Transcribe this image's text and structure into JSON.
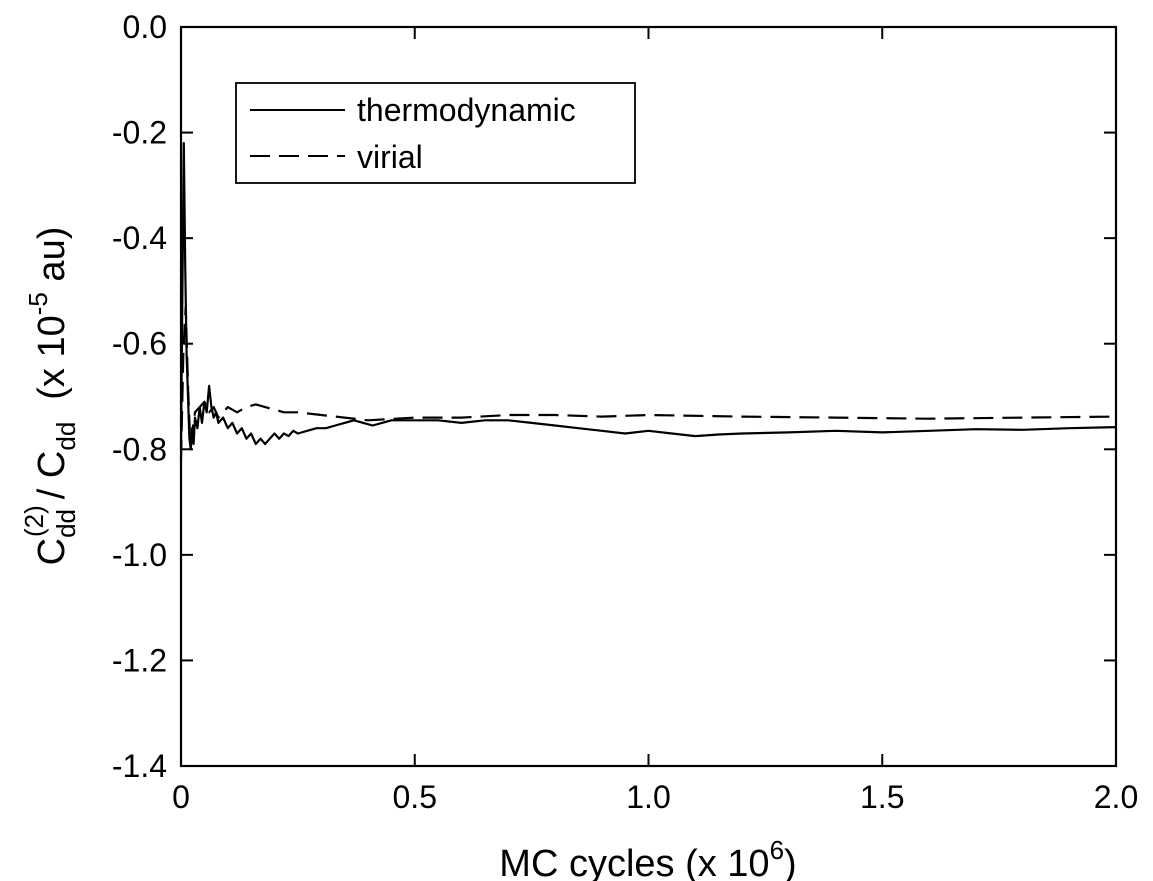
{
  "chart_data": {
    "type": "line",
    "title": "",
    "xlabel": {
      "main": "MC cycles (x 10",
      "sup": "6",
      "end": ")"
    },
    "ylabel": {
      "base1": "C",
      "sub1": "dd",
      "sup1": "(2)",
      "slash": "/ C",
      "sub2": "dd",
      "units_open": "(x 10",
      "units_sup": "-5",
      "units_close": " au)"
    },
    "xlim": [
      0,
      2.0
    ],
    "ylim": [
      -1.4,
      0.0
    ],
    "xticks": [
      0,
      0.5,
      1.0,
      1.5,
      2.0
    ],
    "xtick_labels": [
      "0",
      "0.5",
      "1.0",
      "1.5",
      "2.0"
    ],
    "yticks": [
      0.0,
      -0.2,
      -0.4,
      -0.6,
      -0.8,
      -1.0,
      -1.2,
      -1.4
    ],
    "ytick_labels": [
      "0.0",
      "-0.2",
      "-0.4",
      "-0.6",
      "-0.8",
      "-1.0",
      "-1.2",
      "-1.4"
    ],
    "grid": false,
    "legend_position": "top-left",
    "series": [
      {
        "name": "thermodynamic",
        "style": "solid",
        "color": "#000000",
        "x": [
          0.0,
          0.003,
          0.006,
          0.009,
          0.012,
          0.015,
          0.018,
          0.021,
          0.024,
          0.027,
          0.03,
          0.035,
          0.04,
          0.045,
          0.05,
          0.055,
          0.06,
          0.065,
          0.07,
          0.075,
          0.08,
          0.09,
          0.1,
          0.11,
          0.12,
          0.13,
          0.14,
          0.15,
          0.16,
          0.17,
          0.18,
          0.19,
          0.2,
          0.21,
          0.22,
          0.23,
          0.24,
          0.25,
          0.27,
          0.29,
          0.31,
          0.33,
          0.35,
          0.37,
          0.39,
          0.41,
          0.43,
          0.45,
          0.5,
          0.55,
          0.6,
          0.65,
          0.7,
          0.75,
          0.8,
          0.85,
          0.9,
          0.95,
          1.0,
          1.05,
          1.1,
          1.15,
          1.2,
          1.3,
          1.4,
          1.5,
          1.6,
          1.7,
          1.8,
          1.9,
          2.0
        ],
        "y": [
          -0.8,
          -0.5,
          -0.22,
          -0.45,
          -0.62,
          -0.7,
          -0.78,
          -0.8,
          -0.76,
          -0.79,
          -0.74,
          -0.76,
          -0.72,
          -0.75,
          -0.71,
          -0.73,
          -0.68,
          -0.72,
          -0.74,
          -0.73,
          -0.75,
          -0.74,
          -0.76,
          -0.75,
          -0.77,
          -0.76,
          -0.78,
          -0.77,
          -0.79,
          -0.78,
          -0.79,
          -0.78,
          -0.77,
          -0.78,
          -0.77,
          -0.775,
          -0.765,
          -0.77,
          -0.765,
          -0.76,
          -0.76,
          -0.755,
          -0.75,
          -0.745,
          -0.75,
          -0.755,
          -0.75,
          -0.745,
          -0.745,
          -0.745,
          -0.75,
          -0.745,
          -0.745,
          -0.75,
          -0.755,
          -0.76,
          -0.765,
          -0.77,
          -0.765,
          -0.77,
          -0.775,
          -0.772,
          -0.77,
          -0.768,
          -0.765,
          -0.768,
          -0.765,
          -0.762,
          -0.763,
          -0.76,
          -0.758
        ]
      },
      {
        "name": "virial",
        "style": "dashed",
        "color": "#000000",
        "x": [
          0.0,
          0.005,
          0.01,
          0.015,
          0.02,
          0.025,
          0.03,
          0.04,
          0.05,
          0.06,
          0.07,
          0.08,
          0.09,
          0.1,
          0.12,
          0.14,
          0.16,
          0.18,
          0.2,
          0.22,
          0.25,
          0.3,
          0.35,
          0.4,
          0.5,
          0.6,
          0.7,
          0.8,
          0.9,
          1.0,
          1.2,
          1.4,
          1.6,
          1.8,
          2.0
        ],
        "y": [
          -0.82,
          -0.62,
          -0.53,
          -0.68,
          -0.79,
          -0.76,
          -0.73,
          -0.72,
          -0.71,
          -0.73,
          -0.72,
          -0.74,
          -0.73,
          -0.72,
          -0.73,
          -0.72,
          -0.715,
          -0.72,
          -0.725,
          -0.73,
          -0.73,
          -0.735,
          -0.74,
          -0.745,
          -0.74,
          -0.74,
          -0.735,
          -0.735,
          -0.738,
          -0.735,
          -0.738,
          -0.74,
          -0.742,
          -0.74,
          -0.738
        ]
      }
    ]
  }
}
